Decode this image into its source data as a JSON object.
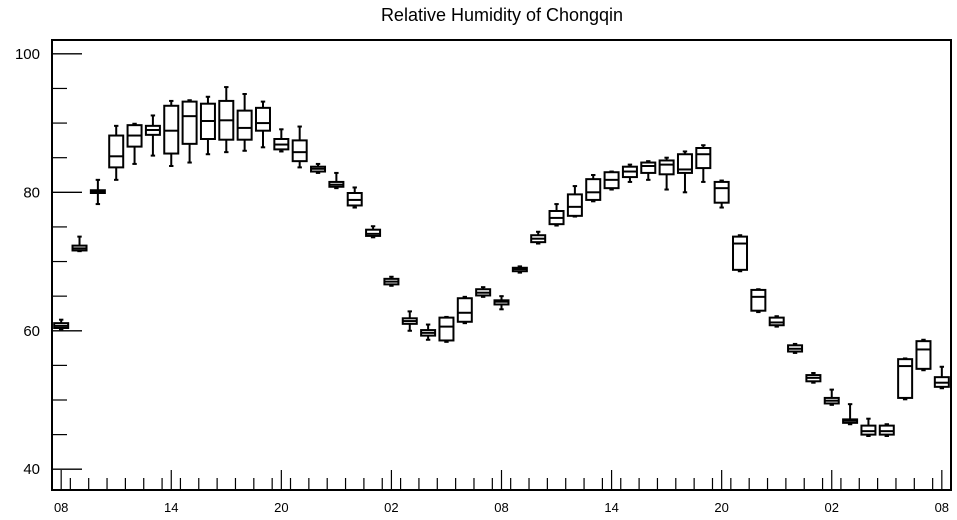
{
  "chart_data": {
    "type": "boxplot",
    "title": "Relative Humidity of Chongqin",
    "xlabel": "",
    "ylabel": "",
    "ylim": [
      37,
      102
    ],
    "yticks": [
      40,
      60,
      80,
      100
    ],
    "xlim": [
      0,
      49
    ],
    "xtick_labels": [
      {
        "x": 0.5,
        "label": "08"
      },
      {
        "x": 6.5,
        "label": "14"
      },
      {
        "x": 12.5,
        "label": "20"
      },
      {
        "x": 18.5,
        "label": "02"
      },
      {
        "x": 24.5,
        "label": "08"
      },
      {
        "x": 30.5,
        "label": "14"
      },
      {
        "x": 36.5,
        "label": "20"
      },
      {
        "x": 42.5,
        "label": "02"
      },
      {
        "x": 48.5,
        "label": "08"
      }
    ],
    "grid": false,
    "boxes": [
      {
        "x": 0.5,
        "low": 60.2,
        "q1": 60.4,
        "median": 60.7,
        "q3": 61.1,
        "high": 61.6
      },
      {
        "x": 1.5,
        "low": 71.5,
        "q1": 71.6,
        "median": 71.9,
        "q3": 72.3,
        "high": 73.6
      },
      {
        "x": 2.5,
        "low": 78.3,
        "q1": 79.9,
        "median": 80.1,
        "q3": 80.3,
        "high": 81.8
      },
      {
        "x": 3.5,
        "low": 81.8,
        "q1": 83.6,
        "median": 85.2,
        "q3": 88.2,
        "high": 89.6
      },
      {
        "x": 4.5,
        "low": 84.1,
        "q1": 86.6,
        "median": 88.2,
        "q3": 89.7,
        "high": 89.9
      },
      {
        "x": 5.5,
        "low": 85.3,
        "q1": 88.3,
        "median": 89.0,
        "q3": 89.6,
        "high": 91.1
      },
      {
        "x": 6.5,
        "low": 83.8,
        "q1": 85.6,
        "median": 88.9,
        "q3": 92.5,
        "high": 93.2
      },
      {
        "x": 7.5,
        "low": 84.3,
        "q1": 87.0,
        "median": 91.0,
        "q3": 93.1,
        "high": 93.3
      },
      {
        "x": 8.5,
        "low": 85.5,
        "q1": 87.7,
        "median": 90.3,
        "q3": 92.8,
        "high": 93.8
      },
      {
        "x": 9.5,
        "low": 85.8,
        "q1": 87.6,
        "median": 90.4,
        "q3": 93.2,
        "high": 95.2
      },
      {
        "x": 10.5,
        "low": 86.0,
        "q1": 87.6,
        "median": 89.3,
        "q3": 91.8,
        "high": 94.2
      },
      {
        "x": 11.5,
        "low": 86.5,
        "q1": 88.9,
        "median": 90.0,
        "q3": 92.2,
        "high": 93.1
      },
      {
        "x": 12.5,
        "low": 85.9,
        "q1": 86.2,
        "median": 86.9,
        "q3": 87.7,
        "high": 89.1
      },
      {
        "x": 13.5,
        "low": 83.6,
        "q1": 84.5,
        "median": 85.8,
        "q3": 87.5,
        "high": 89.5
      },
      {
        "x": 14.5,
        "low": 82.8,
        "q1": 83.0,
        "median": 83.4,
        "q3": 83.7,
        "high": 84.1
      },
      {
        "x": 15.5,
        "low": 80.6,
        "q1": 80.8,
        "median": 81.1,
        "q3": 81.5,
        "high": 82.8
      },
      {
        "x": 16.5,
        "low": 77.8,
        "q1": 78.1,
        "median": 78.9,
        "q3": 79.9,
        "high": 80.7
      },
      {
        "x": 17.5,
        "low": 73.5,
        "q1": 73.7,
        "median": 74.0,
        "q3": 74.6,
        "high": 75.1
      },
      {
        "x": 18.5,
        "low": 66.5,
        "q1": 66.7,
        "median": 67.1,
        "q3": 67.5,
        "high": 67.8
      },
      {
        "x": 19.5,
        "low": 60.0,
        "q1": 61.0,
        "median": 61.4,
        "q3": 61.8,
        "high": 62.8
      },
      {
        "x": 20.5,
        "low": 58.7,
        "q1": 59.3,
        "median": 59.7,
        "q3": 60.1,
        "high": 60.9
      },
      {
        "x": 21.5,
        "low": 58.4,
        "q1": 58.6,
        "median": 60.6,
        "q3": 61.9,
        "high": 62.0
      },
      {
        "x": 22.5,
        "low": 61.1,
        "q1": 61.3,
        "median": 62.6,
        "q3": 64.7,
        "high": 64.9
      },
      {
        "x": 23.5,
        "low": 64.9,
        "q1": 65.1,
        "median": 65.5,
        "q3": 66.0,
        "high": 66.3
      },
      {
        "x": 24.5,
        "low": 63.1,
        "q1": 63.8,
        "median": 64.2,
        "q3": 64.4,
        "high": 65.0
      },
      {
        "x": 25.5,
        "low": 68.4,
        "q1": 68.6,
        "median": 68.9,
        "q3": 69.1,
        "high": 69.3
      },
      {
        "x": 26.5,
        "low": 72.6,
        "q1": 72.8,
        "median": 73.3,
        "q3": 73.8,
        "high": 74.3
      },
      {
        "x": 27.5,
        "low": 75.2,
        "q1": 75.4,
        "median": 76.3,
        "q3": 77.3,
        "high": 78.3
      },
      {
        "x": 28.5,
        "low": 76.5,
        "q1": 76.6,
        "median": 77.9,
        "q3": 79.7,
        "high": 80.9
      },
      {
        "x": 29.5,
        "low": 78.7,
        "q1": 78.9,
        "median": 80.0,
        "q3": 81.9,
        "high": 82.5
      },
      {
        "x": 30.5,
        "low": 80.4,
        "q1": 80.6,
        "median": 81.8,
        "q3": 82.9,
        "high": 83.0
      },
      {
        "x": 31.5,
        "low": 81.5,
        "q1": 82.2,
        "median": 83.0,
        "q3": 83.7,
        "high": 84.0
      },
      {
        "x": 32.5,
        "low": 81.8,
        "q1": 82.8,
        "median": 83.8,
        "q3": 84.3,
        "high": 84.5
      },
      {
        "x": 33.5,
        "low": 80.4,
        "q1": 82.6,
        "median": 84.0,
        "q3": 84.6,
        "high": 85.0
      },
      {
        "x": 34.5,
        "low": 80.0,
        "q1": 82.8,
        "median": 83.3,
        "q3": 85.5,
        "high": 85.9
      },
      {
        "x": 35.5,
        "low": 81.5,
        "q1": 83.5,
        "median": 85.5,
        "q3": 86.4,
        "high": 86.8
      },
      {
        "x": 36.5,
        "low": 77.8,
        "q1": 78.5,
        "median": 80.6,
        "q3": 81.5,
        "high": 81.7
      },
      {
        "x": 37.5,
        "low": 68.6,
        "q1": 68.8,
        "median": 72.6,
        "q3": 73.6,
        "high": 73.8
      },
      {
        "x": 38.5,
        "low": 62.7,
        "q1": 62.9,
        "median": 64.9,
        "q3": 65.9,
        "high": 66.0
      },
      {
        "x": 39.5,
        "low": 60.6,
        "q1": 60.8,
        "median": 61.2,
        "q3": 61.9,
        "high": 62.1
      },
      {
        "x": 40.5,
        "low": 56.8,
        "q1": 57.0,
        "median": 57.4,
        "q3": 57.9,
        "high": 58.1
      },
      {
        "x": 41.5,
        "low": 52.5,
        "q1": 52.7,
        "median": 53.2,
        "q3": 53.6,
        "high": 53.9
      },
      {
        "x": 42.5,
        "low": 49.3,
        "q1": 49.5,
        "median": 49.9,
        "q3": 50.3,
        "high": 51.5
      },
      {
        "x": 43.5,
        "low": 46.5,
        "q1": 46.7,
        "median": 47.0,
        "q3": 47.2,
        "high": 49.4
      },
      {
        "x": 44.5,
        "low": 44.8,
        "q1": 45.0,
        "median": 45.5,
        "q3": 46.3,
        "high": 47.3
      },
      {
        "x": 45.5,
        "low": 44.8,
        "q1": 45.0,
        "median": 45.5,
        "q3": 46.3,
        "high": 46.5
      },
      {
        "x": 46.5,
        "low": 50.1,
        "q1": 50.3,
        "median": 54.9,
        "q3": 55.9,
        "high": 56.0
      },
      {
        "x": 47.5,
        "low": 54.3,
        "q1": 54.5,
        "median": 57.3,
        "q3": 58.5,
        "high": 58.7
      },
      {
        "x": 48.5,
        "low": 51.7,
        "q1": 51.9,
        "median": 52.5,
        "q3": 53.3,
        "high": 54.8
      }
    ],
    "colors": {
      "box_stroke": "#000000",
      "background": "#ffffff",
      "axis": "#000000"
    }
  }
}
